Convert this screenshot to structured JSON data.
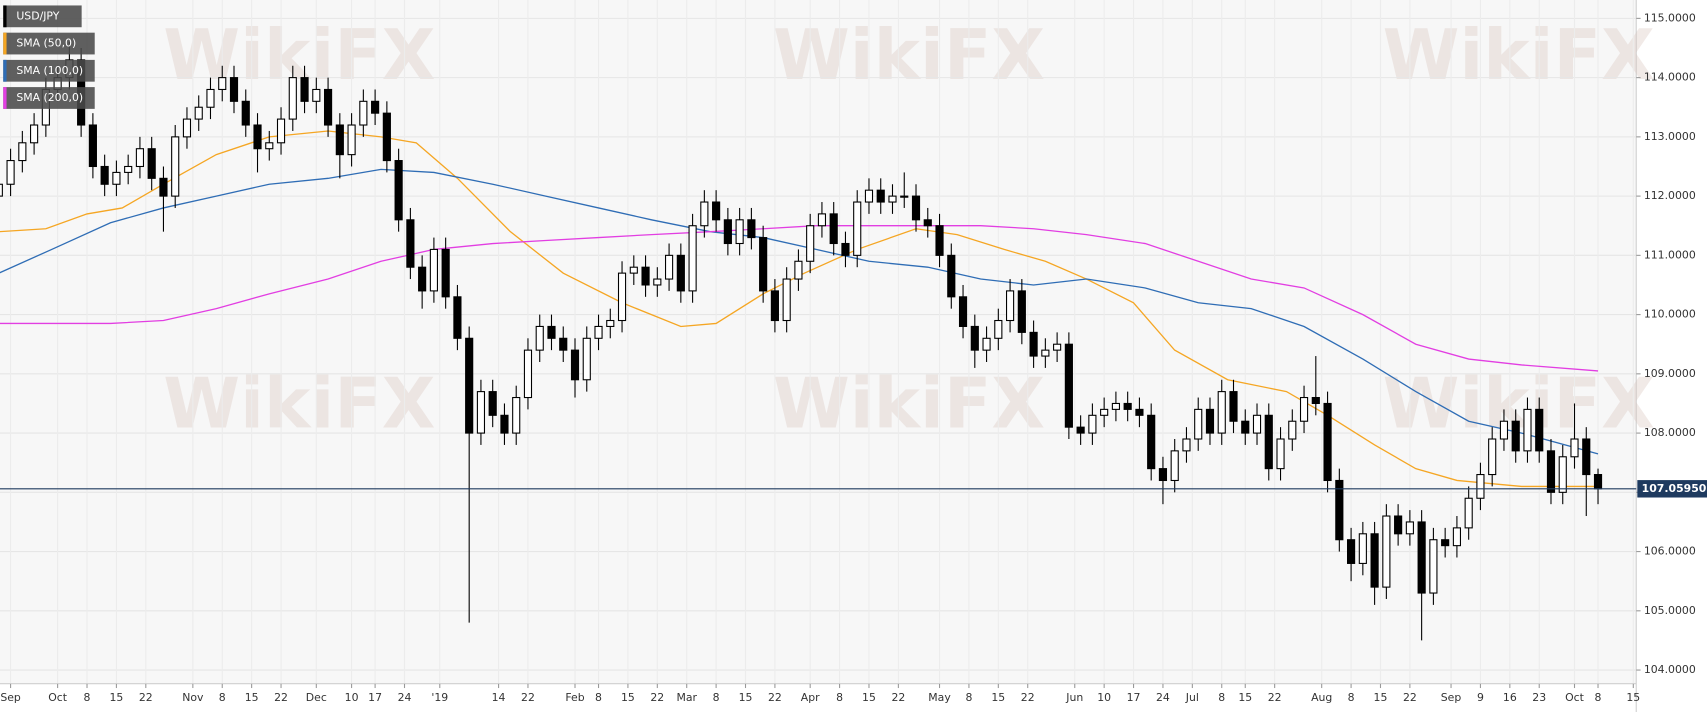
{
  "chart_data": {
    "type": "candlestick",
    "name": "USD/JPY",
    "watermark": "WikiFX",
    "grid": true,
    "up_color": "#ffffff",
    "down_color": "#000000",
    "xlim": [
      -9.8,
      268.5
    ],
    "ylim": [
      103.77,
      115.31
    ],
    "yticks": [
      {
        "value": 115,
        "label": "115.0000"
      },
      {
        "value": 114,
        "label": "114.0000"
      },
      {
        "value": 113,
        "label": "113.0000"
      },
      {
        "value": 112,
        "label": "112.0000"
      },
      {
        "value": 111,
        "label": "111.0000"
      },
      {
        "value": 110,
        "label": "110.0000"
      },
      {
        "value": 109,
        "label": "109.0000"
      },
      {
        "value": 108,
        "label": "108.0000"
      },
      {
        "value": 107,
        "label": "107.0000"
      },
      {
        "value": 106,
        "label": "106.0000"
      },
      {
        "value": 105,
        "label": "105.0000"
      },
      {
        "value": 104,
        "label": "104.0000"
      }
    ],
    "xticks": [
      {
        "value": -8,
        "label": "Sep"
      },
      {
        "value": 0,
        "label": "Oct"
      },
      {
        "value": 5,
        "label": "8"
      },
      {
        "value": 10,
        "label": "15"
      },
      {
        "value": 15,
        "label": "22"
      },
      {
        "value": 23,
        "label": "Nov"
      },
      {
        "value": 28,
        "label": "8"
      },
      {
        "value": 33,
        "label": "15"
      },
      {
        "value": 38,
        "label": "22"
      },
      {
        "value": 44,
        "label": "Dec"
      },
      {
        "value": 50,
        "label": "10"
      },
      {
        "value": 54,
        "label": "17"
      },
      {
        "value": 59,
        "label": "24"
      },
      {
        "value": 65,
        "label": "'19"
      },
      {
        "value": 75,
        "label": "14"
      },
      {
        "value": 80,
        "label": "22"
      },
      {
        "value": 88,
        "label": "Feb"
      },
      {
        "value": 92,
        "label": "8"
      },
      {
        "value": 97,
        "label": "15"
      },
      {
        "value": 102,
        "label": "22"
      },
      {
        "value": 107,
        "label": "Mar"
      },
      {
        "value": 112,
        "label": "8"
      },
      {
        "value": 117,
        "label": "15"
      },
      {
        "value": 122,
        "label": "22"
      },
      {
        "value": 128,
        "label": "Apr"
      },
      {
        "value": 133,
        "label": "8"
      },
      {
        "value": 138,
        "label": "15"
      },
      {
        "value": 143,
        "label": "22"
      },
      {
        "value": 150,
        "label": "May"
      },
      {
        "value": 155,
        "label": "8"
      },
      {
        "value": 160,
        "label": "15"
      },
      {
        "value": 165,
        "label": "22"
      },
      {
        "value": 173,
        "label": "Jun"
      },
      {
        "value": 178,
        "label": "10"
      },
      {
        "value": 183,
        "label": "17"
      },
      {
        "value": 188,
        "label": "24"
      },
      {
        "value": 193,
        "label": "Jul"
      },
      {
        "value": 198,
        "label": "8"
      },
      {
        "value": 202,
        "label": "15"
      },
      {
        "value": 207,
        "label": "22"
      },
      {
        "value": 215,
        "label": "Aug"
      },
      {
        "value": 220,
        "label": "8"
      },
      {
        "value": 225,
        "label": "15"
      },
      {
        "value": 230,
        "label": "22"
      },
      {
        "value": 237,
        "label": "Sep"
      },
      {
        "value": 242,
        "label": "9"
      },
      {
        "value": 247,
        "label": "16"
      },
      {
        "value": 252,
        "label": "23"
      },
      {
        "value": 258,
        "label": "Oct"
      },
      {
        "value": 262,
        "label": "8"
      },
      {
        "value": 268,
        "label": "15"
      }
    ],
    "last_price": {
      "value": 107.0595,
      "label": "107.05950"
    },
    "last_price_color": "#1e3a5f",
    "x": [
      -10,
      -8,
      -6,
      -4,
      -2,
      0,
      2,
      4,
      6,
      8,
      10,
      12,
      14,
      16,
      18,
      20,
      22,
      24,
      26,
      28,
      30,
      32,
      34,
      36,
      38,
      40,
      42,
      44,
      46,
      48,
      50,
      52,
      54,
      56,
      58,
      60,
      62,
      64,
      66,
      68,
      70,
      72,
      74,
      76,
      78,
      80,
      82,
      84,
      86,
      88,
      90,
      92,
      94,
      96,
      98,
      100,
      102,
      104,
      106,
      108,
      110,
      112,
      114,
      116,
      118,
      120,
      122,
      124,
      126,
      128,
      130,
      132,
      134,
      136,
      138,
      140,
      142,
      144,
      146,
      148,
      150,
      152,
      154,
      156,
      158,
      160,
      162,
      164,
      166,
      168,
      170,
      172,
      174,
      176,
      178,
      180,
      182,
      184,
      186,
      188,
      190,
      192,
      194,
      196,
      198,
      200,
      202,
      204,
      206,
      208,
      210,
      212,
      214,
      216,
      218,
      220,
      222,
      224,
      226,
      228,
      230,
      232,
      234,
      236,
      238,
      240,
      242,
      244,
      246,
      248,
      250,
      252,
      254,
      256,
      258,
      260,
      262
    ],
    "open": [
      112.0,
      112.2,
      112.6,
      112.9,
      113.2,
      113.8,
      114.0,
      114.3,
      113.2,
      112.5,
      112.2,
      112.4,
      112.5,
      112.8,
      112.3,
      112.0,
      113.0,
      113.3,
      113.5,
      113.8,
      114.0,
      113.6,
      113.2,
      112.8,
      112.9,
      113.3,
      114.0,
      113.6,
      113.8,
      113.2,
      112.7,
      113.2,
      113.6,
      113.4,
      112.6,
      111.6,
      110.8,
      110.4,
      111.1,
      110.3,
      109.6,
      108.0,
      108.7,
      108.3,
      108.0,
      108.6,
      109.4,
      109.8,
      109.6,
      109.4,
      108.9,
      109.6,
      109.8,
      109.9,
      110.7,
      110.8,
      110.5,
      110.6,
      111.0,
      110.4,
      111.5,
      111.9,
      111.6,
      111.2,
      111.6,
      111.3,
      110.4,
      109.9,
      110.6,
      110.9,
      111.5,
      111.7,
      111.2,
      111.0,
      111.9,
      112.1,
      111.9,
      112.0,
      112.0,
      111.6,
      111.5,
      111.0,
      110.3,
      109.8,
      109.4,
      109.6,
      109.9,
      110.4,
      109.7,
      109.3,
      109.4,
      109.5,
      108.1,
      108.0,
      108.3,
      108.4,
      108.5,
      108.4,
      108.3,
      107.4,
      107.2,
      107.7,
      107.9,
      108.4,
      108.0,
      108.7,
      108.2,
      108.0,
      108.3,
      107.4,
      107.9,
      108.2,
      108.6,
      108.5,
      107.2,
      106.2,
      105.8,
      106.3,
      105.4,
      106.6,
      106.3,
      106.5,
      105.3,
      106.2,
      106.1,
      106.4,
      106.9,
      107.3,
      107.9,
      108.2,
      107.7,
      108.4,
      107.7,
      107.0,
      107.6,
      107.9,
      107.3
    ],
    "high": [
      112.4,
      112.8,
      113.1,
      113.4,
      114.0,
      114.2,
      114.6,
      114.5,
      113.4,
      112.7,
      112.6,
      112.7,
      113.0,
      113.0,
      112.5,
      113.2,
      113.5,
      113.7,
      114.0,
      114.2,
      114.2,
      113.8,
      113.4,
      113.1,
      113.5,
      114.2,
      114.2,
      114.0,
      114.0,
      113.4,
      113.4,
      113.8,
      113.8,
      113.6,
      112.8,
      111.8,
      111.0,
      111.3,
      111.3,
      110.5,
      109.8,
      108.9,
      108.9,
      108.5,
      108.8,
      109.6,
      110.0,
      110.0,
      109.8,
      109.6,
      109.8,
      110.0,
      110.1,
      110.9,
      111.0,
      111.0,
      110.8,
      111.2,
      111.2,
      111.7,
      112.1,
      112.1,
      111.8,
      111.8,
      111.8,
      111.5,
      110.6,
      110.8,
      111.1,
      111.7,
      111.9,
      111.9,
      111.4,
      112.1,
      112.3,
      112.3,
      112.2,
      112.4,
      112.2,
      111.8,
      111.7,
      111.2,
      110.5,
      110.0,
      109.8,
      110.1,
      110.6,
      110.6,
      109.9,
      109.6,
      109.7,
      109.7,
      108.3,
      108.5,
      108.6,
      108.7,
      108.7,
      108.6,
      108.5,
      107.6,
      107.9,
      108.1,
      108.6,
      108.6,
      108.9,
      108.9,
      108.4,
      108.5,
      108.5,
      108.1,
      108.4,
      108.8,
      109.3,
      108.7,
      107.4,
      106.4,
      106.5,
      106.5,
      106.8,
      106.8,
      106.7,
      106.7,
      106.4,
      106.4,
      106.6,
      107.1,
      107.5,
      108.1,
      108.4,
      108.4,
      108.6,
      108.6,
      107.9,
      107.8,
      108.5,
      108.1,
      107.4
    ],
    "low": [
      111.8,
      112.0,
      112.4,
      112.7,
      113.0,
      113.6,
      113.8,
      113.0,
      112.3,
      112.0,
      112.0,
      112.2,
      112.3,
      112.1,
      111.4,
      111.8,
      112.8,
      113.1,
      113.3,
      113.6,
      113.4,
      113.0,
      112.4,
      112.6,
      112.7,
      113.1,
      113.4,
      113.4,
      113.0,
      112.3,
      112.5,
      113.0,
      113.2,
      112.4,
      111.4,
      110.6,
      110.1,
      110.2,
      110.1,
      109.4,
      104.8,
      107.8,
      108.1,
      107.8,
      107.8,
      108.4,
      109.2,
      109.4,
      109.2,
      108.6,
      108.7,
      109.4,
      109.6,
      109.7,
      110.5,
      110.3,
      110.3,
      110.4,
      110.2,
      110.2,
      111.3,
      111.4,
      111.0,
      111.0,
      111.1,
      110.2,
      109.7,
      109.7,
      110.4,
      110.7,
      111.3,
      111.0,
      110.8,
      110.8,
      111.7,
      111.7,
      111.7,
      111.8,
      111.4,
      111.3,
      110.8,
      110.1,
      109.6,
      109.1,
      109.2,
      109.4,
      109.7,
      109.5,
      109.1,
      109.1,
      109.2,
      107.9,
      107.8,
      107.8,
      108.1,
      108.2,
      108.2,
      108.1,
      107.2,
      106.8,
      107.0,
      107.5,
      107.7,
      107.8,
      107.8,
      108.0,
      107.8,
      107.8,
      107.2,
      107.2,
      107.7,
      108.0,
      108.3,
      107.0,
      106.0,
      105.5,
      105.6,
      105.1,
      105.2,
      106.1,
      106.1,
      104.5,
      105.1,
      105.9,
      105.9,
      106.2,
      106.7,
      107.1,
      107.7,
      107.5,
      107.5,
      107.5,
      106.8,
      106.8,
      107.4,
      106.6,
      106.8
    ],
    "close": [
      112.2,
      112.6,
      112.9,
      113.2,
      113.8,
      114.0,
      114.3,
      113.2,
      112.5,
      112.2,
      112.4,
      112.5,
      112.8,
      112.3,
      112.0,
      113.0,
      113.3,
      113.5,
      113.8,
      114.0,
      113.6,
      113.2,
      112.8,
      112.9,
      113.3,
      114.0,
      113.6,
      113.8,
      113.2,
      112.7,
      113.2,
      113.6,
      113.4,
      112.6,
      111.6,
      110.8,
      110.4,
      111.1,
      110.3,
      109.6,
      108.0,
      108.7,
      108.3,
      108.0,
      108.6,
      109.4,
      109.8,
      109.6,
      109.4,
      108.9,
      109.6,
      109.8,
      109.9,
      110.7,
      110.8,
      110.5,
      110.6,
      111.0,
      110.4,
      111.5,
      111.9,
      111.6,
      111.2,
      111.6,
      111.3,
      110.4,
      109.9,
      110.6,
      110.9,
      111.5,
      111.7,
      111.2,
      111.0,
      111.9,
      112.1,
      111.9,
      112.0,
      112.0,
      111.6,
      111.5,
      111.0,
      110.3,
      109.8,
      109.4,
      109.6,
      109.9,
      110.4,
      109.7,
      109.3,
      109.4,
      109.5,
      108.1,
      108.0,
      108.3,
      108.4,
      108.5,
      108.4,
      108.3,
      107.4,
      107.2,
      107.7,
      107.9,
      108.4,
      108.0,
      108.7,
      108.2,
      108.0,
      108.3,
      107.4,
      107.9,
      108.2,
      108.6,
      108.5,
      107.2,
      106.2,
      105.8,
      106.3,
      105.4,
      106.6,
      106.3,
      106.5,
      105.3,
      106.2,
      106.1,
      106.4,
      106.9,
      107.3,
      107.9,
      108.2,
      107.7,
      108.4,
      107.7,
      107.0,
      107.6,
      107.9,
      107.3,
      107.0595
    ],
    "lines": [
      {
        "name": "SMA (50,0)",
        "color": "#f5a623",
        "x": [
          -10,
          -2,
          5,
          11,
          18,
          27,
          36,
          46,
          55,
          61,
          68,
          77,
          86,
          96,
          106,
          112,
          120,
          127,
          136,
          146,
          153,
          161,
          168,
          175,
          183,
          190,
          199,
          209,
          216,
          224,
          231,
          238,
          249,
          262
        ],
        "values": [
          111.4,
          111.45,
          111.7,
          111.8,
          112.2,
          112.7,
          113.0,
          113.1,
          113.0,
          112.9,
          112.3,
          111.4,
          110.7,
          110.2,
          109.8,
          109.85,
          110.35,
          110.7,
          111.1,
          111.45,
          111.35,
          111.1,
          110.9,
          110.6,
          110.2,
          109.4,
          108.9,
          108.7,
          108.3,
          107.8,
          107.4,
          107.2,
          107.1,
          107.1
        ]
      },
      {
        "name": "SMA (100,0)",
        "color": "#2f6db5",
        "x": [
          -10,
          -1,
          9,
          18,
          27,
          36,
          46,
          55,
          64,
          74,
          83,
          92,
          101,
          111,
          120,
          129,
          138,
          148,
          157,
          166,
          175,
          185,
          194,
          203,
          212,
          222,
          231,
          240,
          249,
          262
        ],
        "values": [
          110.7,
          111.1,
          111.55,
          111.8,
          112.0,
          112.2,
          112.3,
          112.45,
          112.4,
          112.2,
          112.0,
          111.8,
          111.6,
          111.4,
          111.3,
          111.1,
          110.9,
          110.8,
          110.6,
          110.5,
          110.6,
          110.45,
          110.2,
          110.1,
          109.8,
          109.25,
          108.7,
          108.2,
          108.0,
          107.65
        ]
      },
      {
        "name": "SMA (200,0)",
        "color": "#e23ee2",
        "x": [
          -10,
          9,
          18,
          27,
          36,
          46,
          55,
          64,
          74,
          83,
          92,
          101,
          111,
          120,
          129,
          138,
          148,
          157,
          166,
          175,
          185,
          194,
          203,
          212,
          222,
          231,
          240,
          249,
          262
        ],
        "values": [
          109.85,
          109.85,
          109.9,
          110.1,
          110.35,
          110.6,
          110.9,
          111.1,
          111.2,
          111.25,
          111.3,
          111.35,
          111.4,
          111.45,
          111.5,
          111.5,
          111.5,
          111.5,
          111.45,
          111.35,
          111.2,
          110.9,
          110.6,
          110.45,
          110.0,
          109.5,
          109.25,
          109.15,
          109.05
        ]
      }
    ]
  }
}
